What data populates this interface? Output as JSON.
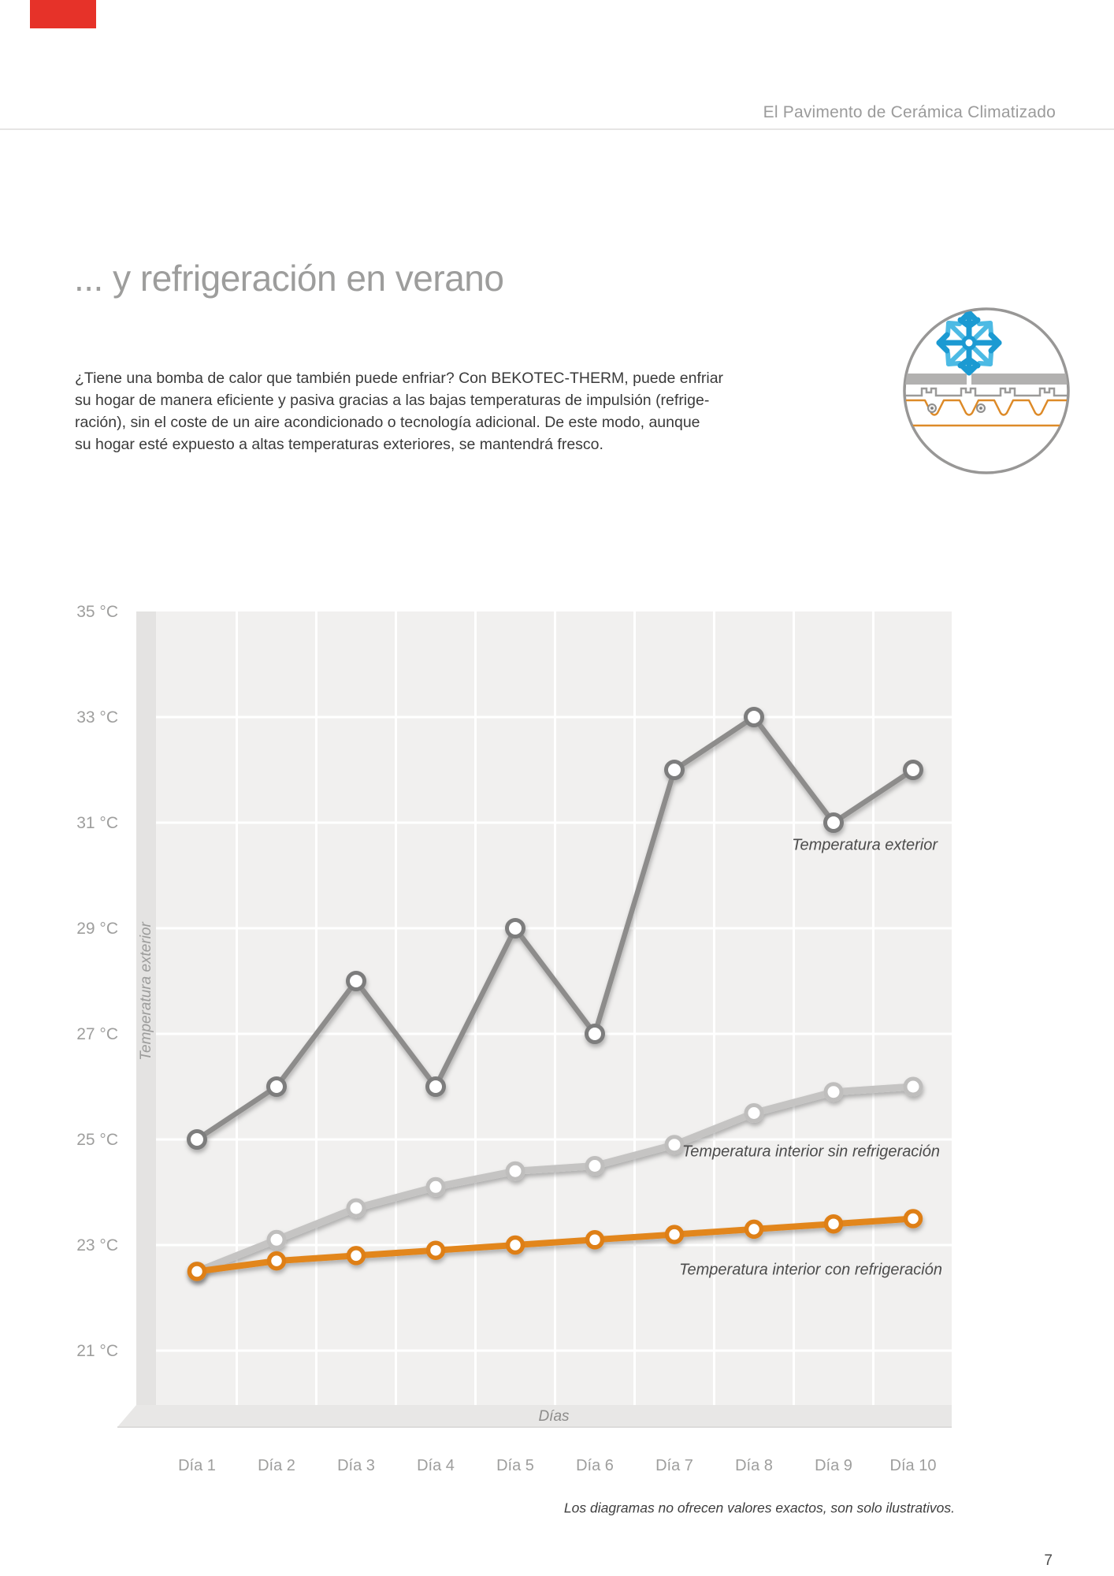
{
  "header": {
    "title": "El Pavimento de Cerámica Climatizado"
  },
  "title": "... y refrigeración en verano",
  "paragraph": {
    "lines": [
      "¿Tiene una bomba de calor que también puede enfriar? Con BEKOTEC-THERM, puede enfriar",
      "su hogar de manera eficiente y pasiva gracias a las bajas temperaturas de impulsión (refrige-",
      "ración), sin el coste de un aire acondicionado o tecnología adicional. De este modo, aunque",
      "su hogar esté expuesto a altas temperaturas exteriores, se mantendrá fresco."
    ]
  },
  "brand": {
    "corner_tab_color": "#e63229"
  },
  "icon": {
    "name": "cooling-floor-cross-section",
    "outline_gray": "#989796",
    "snowflake_blue": "#1b9ad2",
    "snowflake_blue_light": "#4cbae4",
    "tile_gray": "#b2b1b0",
    "stud_gray": "#9b9a99",
    "pipe_orange": "#dd8a28"
  },
  "chart_data": {
    "type": "line",
    "categories": [
      "Día 1",
      "Día 2",
      "Día 3",
      "Día 4",
      "Día 5",
      "Día 6",
      "Día 7",
      "Día 8",
      "Día 9",
      "Día 10"
    ],
    "series": [
      {
        "name": "Temperatura exterior",
        "color": "#8d8c8b",
        "marker_stroke": "#7d7d7d",
        "values": [
          25,
          26,
          28,
          26,
          29,
          27,
          32,
          33,
          31,
          32
        ]
      },
      {
        "name": "Temperatura interior sin refrigeración",
        "color": "#c5c4c3",
        "marker_stroke": "#bfbebd",
        "values": [
          22.5,
          23.1,
          23.7,
          24.1,
          24.4,
          24.5,
          24.9,
          25.5,
          25.9,
          26.0
        ]
      },
      {
        "name": "Temperatura interior con refrigeración",
        "color": "#e2861f",
        "marker_stroke": "#de7f16",
        "values": [
          22.5,
          22.7,
          22.8,
          22.9,
          23.0,
          23.1,
          23.2,
          23.3,
          23.4,
          23.5
        ]
      }
    ],
    "xlabel": "Días",
    "ylabel": "Temperatura exterior",
    "yticks": [
      35,
      33,
      31,
      29,
      27,
      25,
      23,
      21
    ],
    "ytick_suffix": " °C",
    "ylim": [
      20,
      35
    ],
    "grid": true,
    "legend_position": "inline-labels-right",
    "note": "Los diagramas no ofrecen valores exactos, son solo ilustrativos."
  },
  "footer": {
    "page_number": "7"
  }
}
